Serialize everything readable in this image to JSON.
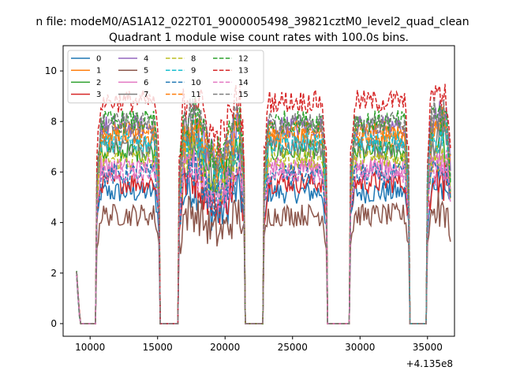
{
  "chart_data": {
    "type": "line",
    "suptitle": "n file: modeM0/AS1A12_022T01_9000005498_39821cztM0_level2_quad_clean",
    "title": "Quadrant 1 module wise count rates with 100.0s bins.",
    "xlabel": "",
    "ylabel": "",
    "x_offset_label": "+4.135e8",
    "xlim": [
      8000,
      37000
    ],
    "ylim": [
      -0.5,
      11.0
    ],
    "x_ticks": [
      10000,
      15000,
      20000,
      25000,
      30000,
      35000
    ],
    "x_tick_labels": [
      "10000",
      "15000",
      "20000",
      "25000",
      "30000",
      "35000"
    ],
    "y_ticks": [
      0,
      2,
      4,
      6,
      8,
      10
    ],
    "y_tick_labels": [
      "0",
      "2",
      "4",
      "6",
      "8",
      "10"
    ],
    "segments": [
      {
        "on": [
          9000,
          9200
        ],
        "peak": 2.0
      },
      {
        "on": [
          10500,
          15100
        ]
      },
      {
        "on": [
          16600,
          21400
        ]
      },
      {
        "on": [
          22900,
          27500
        ]
      },
      {
        "on": [
          29300,
          33600
        ]
      },
      {
        "on": [
          35000,
          36700
        ]
      }
    ],
    "legend": {
      "location": "upper-left",
      "columns": 4
    },
    "series": [
      {
        "name": "0",
        "color": "#1f77b4",
        "dash": "solid",
        "level": 5.2
      },
      {
        "name": "1",
        "color": "#ff7f0e",
        "dash": "solid",
        "level": 7.4
      },
      {
        "name": "2",
        "color": "#2ca02c",
        "dash": "solid",
        "level": 6.8
      },
      {
        "name": "3",
        "color": "#d62728",
        "dash": "solid",
        "level": 5.6
      },
      {
        "name": "4",
        "color": "#9467bd",
        "dash": "solid",
        "level": 7.8
      },
      {
        "name": "5",
        "color": "#8c564b",
        "dash": "solid",
        "level": 4.3
      },
      {
        "name": "6",
        "color": "#e377c2",
        "dash": "solid",
        "level": 6.2
      },
      {
        "name": "7",
        "color": "#7f7f7f",
        "dash": "solid",
        "level": 7.0
      },
      {
        "name": "8",
        "color": "#bcbd22",
        "dash": "dashed",
        "level": 6.5
      },
      {
        "name": "9",
        "color": "#17becf",
        "dash": "dashed",
        "level": 7.2
      },
      {
        "name": "10",
        "color": "#1f77b4",
        "dash": "dashed",
        "level": 5.9
      },
      {
        "name": "11",
        "color": "#ff7f0e",
        "dash": "dashed",
        "level": 7.6
      },
      {
        "name": "12",
        "color": "#2ca02c",
        "dash": "dashed",
        "level": 8.0
      },
      {
        "name": "13",
        "color": "#d62728",
        "dash": "dashed",
        "level": 8.8
      },
      {
        "name": "14",
        "color": "#e377c2",
        "dash": "dashed",
        "level": 6.0
      },
      {
        "name": "15",
        "color": "#7f7f7f",
        "dash": "dashed",
        "level": 7.9
      }
    ]
  }
}
